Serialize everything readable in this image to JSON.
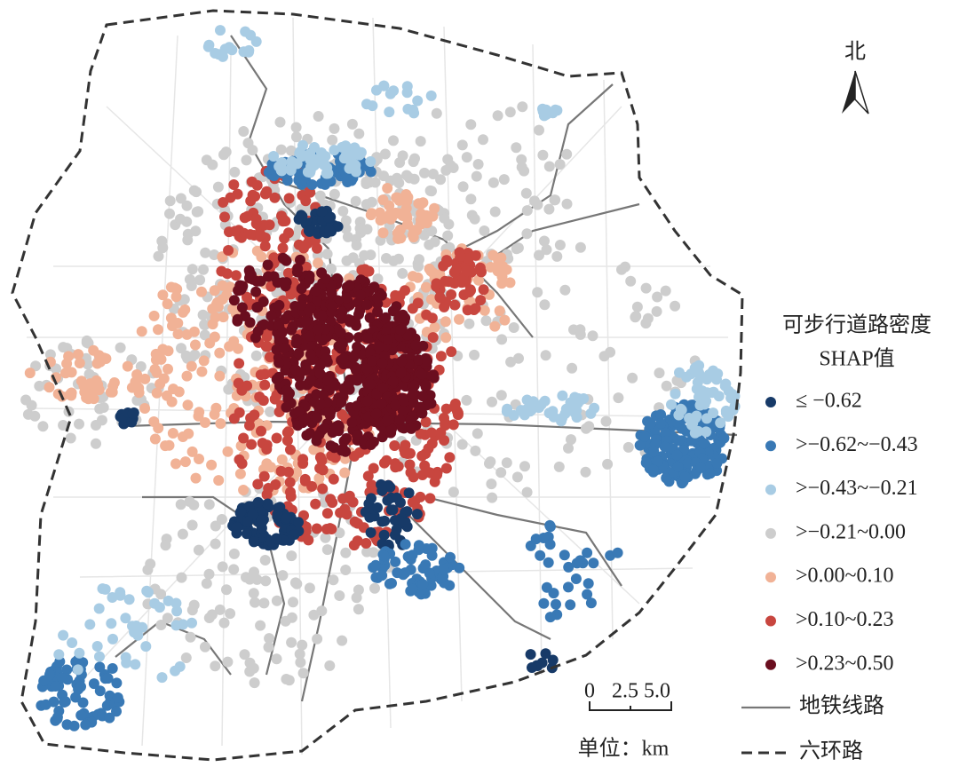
{
  "north": "北",
  "legend": {
    "title": "可步行道路密度",
    "subtitle": "SHAP值",
    "items": [
      {
        "label": "≤ −0.62",
        "color": "#173a68"
      },
      {
        "label": ">−0.62~−0.43",
        "color": "#3979b5"
      },
      {
        "label": ">−0.43~−0.21",
        "color": "#a8cce4"
      },
      {
        "label": ">−0.21~0.00",
        "color": "#cdcdcd"
      },
      {
        "label": ">0.00~0.10",
        "color": "#f1b296"
      },
      {
        "label": ">0.10~0.23",
        "color": "#c8463f"
      },
      {
        "label": ">0.23~0.50",
        "color": "#6a0e1f"
      }
    ],
    "metro": "地铁线路",
    "ring": "六环路"
  },
  "scale_bar": {
    "ticks": [
      "0",
      "2.5",
      "5.0"
    ],
    "unit": "单位：km"
  }
}
